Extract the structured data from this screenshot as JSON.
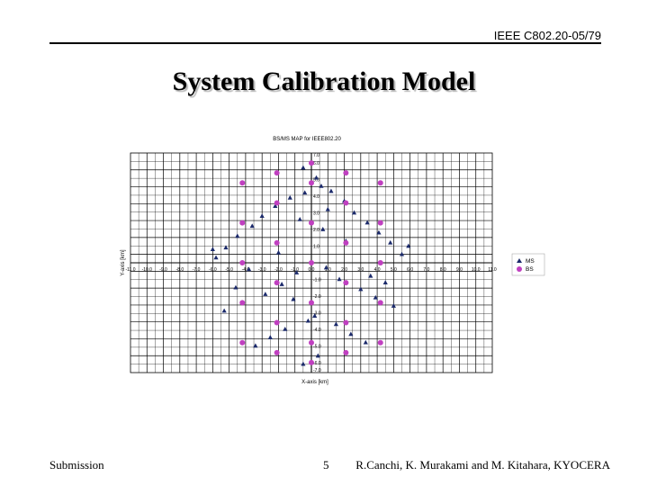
{
  "header": {
    "doc_id": "IEEE C802.20-05/79"
  },
  "slide": {
    "title": "System Calibration Model"
  },
  "footer": {
    "left": "Submission",
    "page": "5",
    "right": "R.Canchi, K. Murakami and M. Kitahara, KYOCERA"
  },
  "chart_data": {
    "type": "scatter",
    "title": "BS/MS MAP for IEEE802.20",
    "xlabel": "X-axis [km]",
    "ylabel": "Y-axis [km]",
    "xlim": [
      -11.0,
      11.0
    ],
    "ylim": [
      -6.6,
      6.6
    ],
    "grid": true,
    "legend_position": "right",
    "x_tick_labels": [
      "-11.0",
      "-10.0",
      "-9.0",
      "-8.0",
      "-7.0",
      "-6.0",
      "-5.0",
      "-4.0",
      "-3.0",
      "-2.0",
      "-1.0",
      "0.0",
      "1.0",
      "2.0",
      "3.0",
      "4.0",
      "5.0",
      "6.0",
      "7.0",
      "8.0",
      "9.0",
      "10.0",
      "11.0"
    ],
    "y_tick_labels": [
      "7.0",
      "6.0",
      "5.0",
      "4.0",
      "3.0",
      "2.0",
      "1.0",
      "-1.0",
      "-2.0",
      "-3.0",
      "-4.0",
      "-5.0",
      "-6.0",
      "-7.0"
    ],
    "series": [
      {
        "name": "MS",
        "marker": "triangle",
        "color": "#1b2a6b",
        "x": [
          -0.5,
          0.3,
          0.6,
          -0.4,
          1.2,
          -1.3,
          2.0,
          -2.2,
          2.6,
          -3.0,
          3.4,
          -3.6,
          4.1,
          -4.5,
          4.8,
          -5.2,
          5.5,
          -5.8,
          0.9,
          -0.9,
          1.7,
          -1.8,
          3.0,
          -2.8,
          3.9,
          -4.2,
          5.0,
          -5.3,
          0.2,
          -0.2,
          1.5,
          -1.6,
          2.4,
          -2.5,
          3.3,
          -3.4,
          4.5,
          -4.6,
          5.9,
          -6.0,
          0.7,
          -0.7,
          2.1,
          -2.0,
          3.6,
          -3.8,
          0.4,
          -0.5,
          1.0,
          -1.1
        ],
        "y": [
          5.7,
          5.1,
          4.6,
          4.2,
          4.3,
          3.9,
          3.7,
          3.4,
          3.0,
          2.8,
          2.4,
          2.2,
          1.8,
          1.6,
          1.2,
          0.9,
          0.5,
          0.3,
          -0.3,
          -0.6,
          -1.0,
          -1.3,
          -1.6,
          -1.9,
          -2.1,
          -2.4,
          -2.6,
          -2.9,
          -3.2,
          -3.5,
          -3.7,
          -4.0,
          -4.3,
          -4.5,
          -4.8,
          -5.0,
          -1.2,
          -1.5,
          1.0,
          0.8,
          2.0,
          2.6,
          1.3,
          0.6,
          -0.8,
          -0.4,
          -5.6,
          -6.1,
          3.2,
          -2.2
        ]
      },
      {
        "name": "BS",
        "marker": "circle",
        "color": "#c040c0",
        "x": [
          0.0,
          0.0,
          0.0,
          0.0,
          0.0,
          0.0,
          0.0,
          2.1,
          2.1,
          2.1,
          2.1,
          2.1,
          2.1,
          -2.1,
          -2.1,
          -2.1,
          -2.1,
          -2.1,
          -2.1,
          4.2,
          4.2,
          4.2,
          4.2,
          4.2,
          -4.2,
          -4.2,
          -4.2,
          -4.2,
          -4.2
        ],
        "y": [
          0.0,
          2.4,
          4.8,
          -2.4,
          -4.8,
          6.0,
          -6.0,
          1.2,
          3.6,
          -1.2,
          -3.6,
          5.4,
          -5.4,
          1.2,
          3.6,
          -1.2,
          -3.6,
          5.4,
          -5.4,
          0.0,
          2.4,
          -2.4,
          4.8,
          -4.8,
          0.0,
          2.4,
          -2.4,
          4.8,
          -4.8
        ]
      }
    ]
  }
}
